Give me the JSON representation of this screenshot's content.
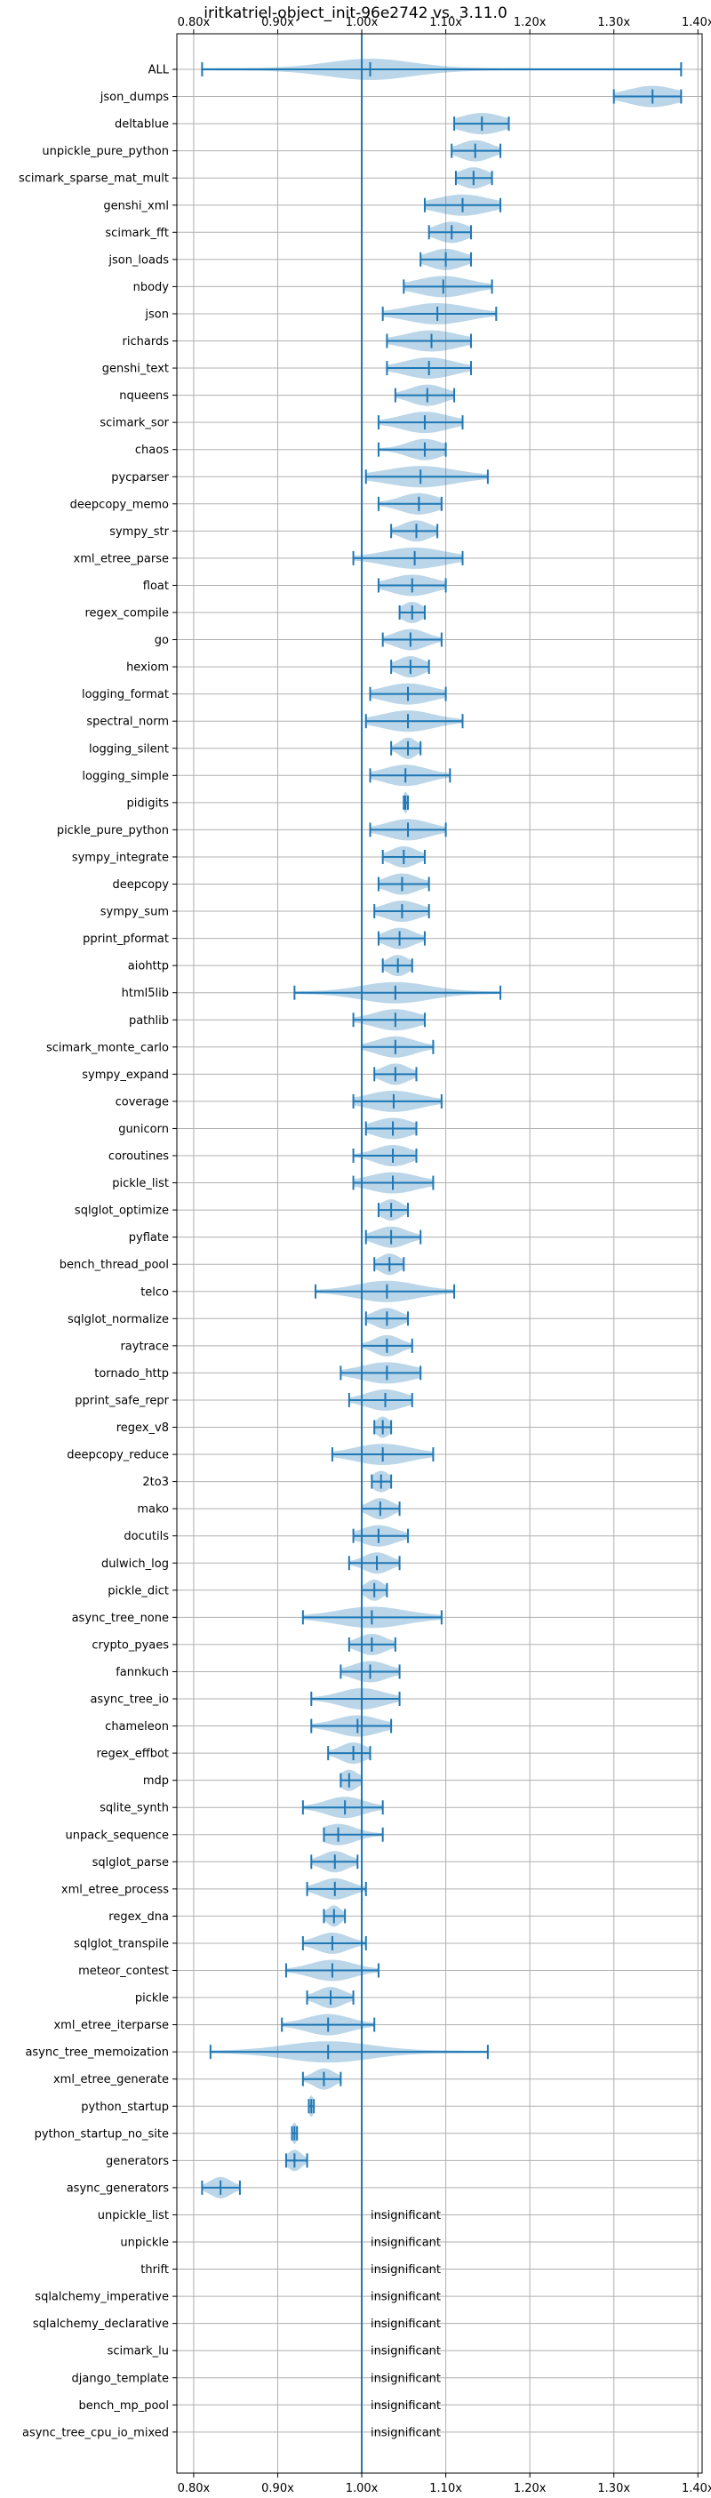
{
  "chart_data": {
    "type": "violin",
    "title": "iritkatriel-object_init-96e2742 vs. 3.11.0",
    "xlim": [
      0.78,
      1.405
    ],
    "x_ticks": [
      0.8,
      0.9,
      1.0,
      1.1,
      1.2,
      1.3,
      1.4
    ],
    "x_tick_labels": [
      "0.80x",
      "0.90x",
      "1.00x",
      "1.10x",
      "1.20x",
      "1.30x",
      "1.40x"
    ],
    "reference_line": 1.0,
    "grid": true,
    "insignificant_label": "insignificant",
    "benchmarks": [
      {
        "name": "ALL",
        "min": 0.81,
        "med": 1.01,
        "max": 1.38,
        "spread": 0.05
      },
      {
        "name": "json_dumps",
        "min": 1.3,
        "med": 1.346,
        "max": 1.38,
        "spread": 0.028
      },
      {
        "name": "deltablue",
        "min": 1.11,
        "med": 1.143,
        "max": 1.175,
        "spread": 0.025
      },
      {
        "name": "unpickle_pure_python",
        "min": 1.107,
        "med": 1.135,
        "max": 1.165,
        "spread": 0.018
      },
      {
        "name": "scimark_sparse_mat_mult",
        "min": 1.112,
        "med": 1.133,
        "max": 1.155,
        "spread": 0.016
      },
      {
        "name": "genshi_xml",
        "min": 1.075,
        "med": 1.12,
        "max": 1.165,
        "spread": 0.03
      },
      {
        "name": "scimark_fft",
        "min": 1.08,
        "med": 1.107,
        "max": 1.13,
        "spread": 0.018
      },
      {
        "name": "json_loads",
        "min": 1.07,
        "med": 1.1,
        "max": 1.13,
        "spread": 0.02
      },
      {
        "name": "nbody",
        "min": 1.05,
        "med": 1.097,
        "max": 1.155,
        "spread": 0.03
      },
      {
        "name": "json",
        "min": 1.025,
        "med": 1.09,
        "max": 1.16,
        "spread": 0.035
      },
      {
        "name": "richards",
        "min": 1.03,
        "med": 1.083,
        "max": 1.13,
        "spread": 0.03
      },
      {
        "name": "genshi_text",
        "min": 1.03,
        "med": 1.08,
        "max": 1.13,
        "spread": 0.028
      },
      {
        "name": "nqueens",
        "min": 1.04,
        "med": 1.078,
        "max": 1.11,
        "spread": 0.02
      },
      {
        "name": "scimark_sor",
        "min": 1.02,
        "med": 1.075,
        "max": 1.12,
        "spread": 0.027
      },
      {
        "name": "chaos",
        "min": 1.02,
        "med": 1.075,
        "max": 1.1,
        "spread": 0.02
      },
      {
        "name": "pycparser",
        "min": 1.005,
        "med": 1.07,
        "max": 1.15,
        "spread": 0.04
      },
      {
        "name": "deepcopy_memo",
        "min": 1.02,
        "med": 1.068,
        "max": 1.095,
        "spread": 0.022
      },
      {
        "name": "sympy_str",
        "min": 1.035,
        "med": 1.065,
        "max": 1.09,
        "spread": 0.016
      },
      {
        "name": "xml_etree_parse",
        "min": 0.99,
        "med": 1.063,
        "max": 1.12,
        "spread": 0.035
      },
      {
        "name": "float",
        "min": 1.02,
        "med": 1.06,
        "max": 1.1,
        "spread": 0.025
      },
      {
        "name": "regex_compile",
        "min": 1.045,
        "med": 1.06,
        "max": 1.075,
        "spread": 0.012
      },
      {
        "name": "go",
        "min": 1.025,
        "med": 1.058,
        "max": 1.095,
        "spread": 0.018
      },
      {
        "name": "hexiom",
        "min": 1.035,
        "med": 1.058,
        "max": 1.08,
        "spread": 0.015
      },
      {
        "name": "logging_format",
        "min": 1.01,
        "med": 1.055,
        "max": 1.1,
        "spread": 0.028
      },
      {
        "name": "spectral_norm",
        "min": 1.005,
        "med": 1.055,
        "max": 1.12,
        "spread": 0.03
      },
      {
        "name": "logging_silent",
        "min": 1.035,
        "med": 1.055,
        "max": 1.07,
        "spread": 0.01
      },
      {
        "name": "logging_simple",
        "min": 1.01,
        "med": 1.052,
        "max": 1.105,
        "spread": 0.025
      },
      {
        "name": "pidigits",
        "min": 1.05,
        "med": 1.052,
        "max": 1.055,
        "spread": 0.003
      },
      {
        "name": "pickle_pure_python",
        "min": 1.01,
        "med": 1.055,
        "max": 1.1,
        "spread": 0.025
      },
      {
        "name": "sympy_integrate",
        "min": 1.025,
        "med": 1.05,
        "max": 1.075,
        "spread": 0.015
      },
      {
        "name": "deepcopy",
        "min": 1.02,
        "med": 1.048,
        "max": 1.08,
        "spread": 0.018
      },
      {
        "name": "sympy_sum",
        "min": 1.015,
        "med": 1.048,
        "max": 1.08,
        "spread": 0.02
      },
      {
        "name": "pprint_pformat",
        "min": 1.02,
        "med": 1.045,
        "max": 1.075,
        "spread": 0.016
      },
      {
        "name": "aiohttp",
        "min": 1.025,
        "med": 1.043,
        "max": 1.06,
        "spread": 0.012
      },
      {
        "name": "html5lib",
        "min": 0.92,
        "med": 1.04,
        "max": 1.165,
        "spread": 0.04
      },
      {
        "name": "pathlib",
        "min": 0.99,
        "med": 1.04,
        "max": 1.075,
        "spread": 0.025
      },
      {
        "name": "scimark_monte_carlo",
        "min": 1.0,
        "med": 1.04,
        "max": 1.085,
        "spread": 0.022
      },
      {
        "name": "sympy_expand",
        "min": 1.015,
        "med": 1.04,
        "max": 1.065,
        "spread": 0.015
      },
      {
        "name": "coverage",
        "min": 0.99,
        "med": 1.038,
        "max": 1.095,
        "spread": 0.03
      },
      {
        "name": "gunicorn",
        "min": 1.005,
        "med": 1.037,
        "max": 1.065,
        "spread": 0.022
      },
      {
        "name": "coroutines",
        "min": 0.99,
        "med": 1.037,
        "max": 1.065,
        "spread": 0.02
      },
      {
        "name": "pickle_list",
        "min": 0.99,
        "med": 1.037,
        "max": 1.085,
        "spread": 0.028
      },
      {
        "name": "sqlglot_optimize",
        "min": 1.02,
        "med": 1.035,
        "max": 1.055,
        "spread": 0.012
      },
      {
        "name": "pyflate",
        "min": 1.005,
        "med": 1.035,
        "max": 1.07,
        "spread": 0.018
      },
      {
        "name": "bench_thread_pool",
        "min": 1.015,
        "med": 1.033,
        "max": 1.05,
        "spread": 0.012
      },
      {
        "name": "telco",
        "min": 0.945,
        "med": 1.03,
        "max": 1.11,
        "spread": 0.035
      },
      {
        "name": "sqlglot_normalize",
        "min": 1.005,
        "med": 1.03,
        "max": 1.055,
        "spread": 0.015
      },
      {
        "name": "raytrace",
        "min": 1.0,
        "med": 1.03,
        "max": 1.06,
        "spread": 0.015
      },
      {
        "name": "tornado_http",
        "min": 0.975,
        "med": 1.03,
        "max": 1.07,
        "spread": 0.03
      },
      {
        "name": "pprint_safe_repr",
        "min": 0.985,
        "med": 1.028,
        "max": 1.06,
        "spread": 0.022
      },
      {
        "name": "regex_v8",
        "min": 1.015,
        "med": 1.025,
        "max": 1.035,
        "spread": 0.008
      },
      {
        "name": "deepcopy_reduce",
        "min": 0.965,
        "med": 1.025,
        "max": 1.085,
        "spread": 0.032
      },
      {
        "name": "2to3",
        "min": 1.012,
        "med": 1.023,
        "max": 1.035,
        "spread": 0.01
      },
      {
        "name": "mako",
        "min": 1.0,
        "med": 1.022,
        "max": 1.045,
        "spread": 0.013
      },
      {
        "name": "docutils",
        "min": 0.99,
        "med": 1.02,
        "max": 1.055,
        "spread": 0.02
      },
      {
        "name": "dulwich_log",
        "min": 0.985,
        "med": 1.018,
        "max": 1.045,
        "spread": 0.015
      },
      {
        "name": "pickle_dict",
        "min": 1.0,
        "med": 1.015,
        "max": 1.03,
        "spread": 0.01
      },
      {
        "name": "async_tree_none",
        "min": 0.93,
        "med": 1.012,
        "max": 1.095,
        "spread": 0.04
      },
      {
        "name": "crypto_pyaes",
        "min": 0.985,
        "med": 1.012,
        "max": 1.04,
        "spread": 0.016
      },
      {
        "name": "fannkuch",
        "min": 0.975,
        "med": 1.01,
        "max": 1.045,
        "spread": 0.02
      },
      {
        "name": "async_tree_io",
        "min": 0.94,
        "med": 1.0,
        "max": 1.045,
        "spread": 0.025
      },
      {
        "name": "chameleon",
        "min": 0.94,
        "med": 0.995,
        "max": 1.035,
        "spread": 0.025
      },
      {
        "name": "regex_effbot",
        "min": 0.96,
        "med": 0.99,
        "max": 1.01,
        "spread": 0.015
      },
      {
        "name": "mdp",
        "min": 0.975,
        "med": 0.985,
        "max": 1.0,
        "spread": 0.01
      },
      {
        "name": "sqlite_synth",
        "min": 0.93,
        "med": 0.98,
        "max": 1.025,
        "spread": 0.022
      },
      {
        "name": "unpack_sequence",
        "min": 0.955,
        "med": 0.972,
        "max": 1.025,
        "spread": 0.02
      },
      {
        "name": "sqlglot_parse",
        "min": 0.94,
        "med": 0.968,
        "max": 0.995,
        "spread": 0.015
      },
      {
        "name": "xml_etree_process",
        "min": 0.935,
        "med": 0.968,
        "max": 1.005,
        "spread": 0.018
      },
      {
        "name": "regex_dna",
        "min": 0.955,
        "med": 0.967,
        "max": 0.98,
        "spread": 0.008
      },
      {
        "name": "sqlglot_transpile",
        "min": 0.93,
        "med": 0.965,
        "max": 1.005,
        "spread": 0.018
      },
      {
        "name": "meteor_contest",
        "min": 0.91,
        "med": 0.965,
        "max": 1.02,
        "spread": 0.025
      },
      {
        "name": "pickle",
        "min": 0.935,
        "med": 0.963,
        "max": 0.99,
        "spread": 0.015
      },
      {
        "name": "xml_etree_iterparse",
        "min": 0.905,
        "med": 0.96,
        "max": 1.015,
        "spread": 0.025
      },
      {
        "name": "async_tree_memoization",
        "min": 0.82,
        "med": 0.96,
        "max": 1.15,
        "spread": 0.05
      },
      {
        "name": "xml_etree_generate",
        "min": 0.93,
        "med": 0.955,
        "max": 0.975,
        "spread": 0.012
      },
      {
        "name": "python_startup",
        "min": 0.937,
        "med": 0.94,
        "max": 0.943,
        "spread": 0.003
      },
      {
        "name": "python_startup_no_site",
        "min": 0.917,
        "med": 0.92,
        "max": 0.923,
        "spread": 0.003
      },
      {
        "name": "generators",
        "min": 0.91,
        "med": 0.92,
        "max": 0.935,
        "spread": 0.008
      },
      {
        "name": "async_generators",
        "min": 0.81,
        "med": 0.832,
        "max": 0.855,
        "spread": 0.012
      },
      {
        "name": "unpickle_list",
        "insignificant": true
      },
      {
        "name": "unpickle",
        "insignificant": true
      },
      {
        "name": "thrift",
        "insignificant": true
      },
      {
        "name": "sqlalchemy_imperative",
        "insignificant": true
      },
      {
        "name": "sqlalchemy_declarative",
        "insignificant": true
      },
      {
        "name": "scimark_lu",
        "insignificant": true
      },
      {
        "name": "django_template",
        "insignificant": true
      },
      {
        "name": "bench_mp_pool",
        "insignificant": true
      },
      {
        "name": "async_tree_cpu_io_mixed",
        "insignificant": true
      }
    ],
    "colors": {
      "violin": "#1f77b4",
      "line": "#1f77b4",
      "grid": "#b0b0b0"
    }
  }
}
